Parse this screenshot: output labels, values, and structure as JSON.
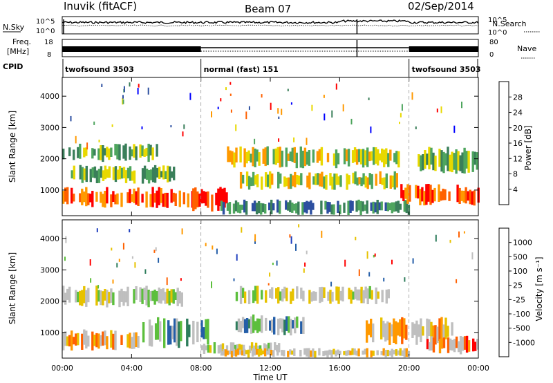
{
  "header": {
    "station": "Inuvik (fitACF)",
    "beam": "Beam 07",
    "date": "02/Sep/2014"
  },
  "aux_panels": {
    "nsky_label": "N.Sky",
    "nsearch_label": "N.Search",
    "freq_label_1": "Freq.",
    "freq_label_2": "[MHz]",
    "nave_label": "Nave",
    "cpid_label": "CPID",
    "noise_ticks": [
      "10^5",
      "10^0"
    ],
    "freq_ticks": [
      "18",
      "8"
    ],
    "nave_ticks": [
      "80",
      "0"
    ]
  },
  "cpid_segments": [
    {
      "label": "twofsound 3503",
      "start_h": 0,
      "end_h": 8
    },
    {
      "label": "normal (fast) 151",
      "start_h": 8,
      "end_h": 20
    },
    {
      "label": "twofsound 3503",
      "start_h": 20,
      "end_h": 24
    }
  ],
  "colors": {
    "power_scale": [
      "#0000ff",
      "#2c4fa0",
      "#3a7f5a",
      "#4ea55e",
      "#e8d800",
      "#ff9900",
      "#ff6000",
      "#ff0000"
    ],
    "velocity_scale": [
      "#1f3fbf",
      "#245ea8",
      "#2e7d5c",
      "#5cbf3c",
      "#bfbfbf",
      "#e7c200",
      "#ff9900",
      "#ff6000",
      "#ff0000"
    ],
    "gray": "#c8c8c2"
  },
  "chart_data": [
    {
      "type": "heatmap",
      "panel": "power",
      "xlabel": "Time UT",
      "ylabel": "Slant Range [km]",
      "xlim": [
        0,
        24
      ],
      "ylim": [
        180,
        4600
      ],
      "xticks": [
        "00:00",
        "04:00",
        "08:00",
        "12:00",
        "16:00",
        "20:00",
        "00:00"
      ],
      "yticks": [
        1000,
        2000,
        3000,
        4000
      ],
      "colorbar_label": "Power [dB]",
      "colorbar_ticks": [
        "28",
        "24",
        "20",
        "16",
        "12",
        "8",
        "4"
      ],
      "bands": [
        {
          "t0": 0.0,
          "t1": 5.5,
          "r0": 1900,
          "r1": 2500,
          "level": 3
        },
        {
          "t0": 0.5,
          "t1": 6.5,
          "r0": 1200,
          "r1": 1800,
          "level": 3
        },
        {
          "t0": 0.0,
          "t1": 7.5,
          "r0": 400,
          "r1": 1100,
          "level": 6
        },
        {
          "t0": 7.5,
          "t1": 9.5,
          "r0": 300,
          "r1": 1100,
          "level": 7
        },
        {
          "t0": 9.5,
          "t1": 19.5,
          "r0": 1700,
          "r1": 2400,
          "level": 4
        },
        {
          "t0": 10.0,
          "t1": 19.5,
          "r0": 1000,
          "r1": 1600,
          "level": 4
        },
        {
          "t0": 9.0,
          "t1": 20.0,
          "r0": 200,
          "r1": 700,
          "level": 2
        },
        {
          "t0": 19.5,
          "t1": 24.0,
          "r0": 500,
          "r1": 1200,
          "level": 6
        },
        {
          "t0": 20.5,
          "t1": 24.0,
          "r0": 1500,
          "r1": 2400,
          "level": 3
        }
      ]
    },
    {
      "type": "heatmap",
      "panel": "velocity",
      "xlabel": "Time UT",
      "ylabel": "Slant Range [km]",
      "xlim": [
        0,
        24
      ],
      "ylim": [
        180,
        4600
      ],
      "xticks": [
        "00:00",
        "04:00",
        "08:00",
        "12:00",
        "16:00",
        "20:00",
        "00:00"
      ],
      "yticks": [
        1000,
        2000,
        3000,
        4000
      ],
      "colorbar_label": "Velocity [m s⁻¹]",
      "colorbar_ticks": [
        "1000",
        "500",
        "100",
        "25",
        "-25",
        "-100",
        "-500",
        "-1000"
      ],
      "bands": [
        {
          "t0": 0.0,
          "t1": 7.0,
          "r0": 1800,
          "r1": 2500,
          "level": 4
        },
        {
          "t0": 0.0,
          "t1": 4.5,
          "r0": 400,
          "r1": 1100,
          "level": 6
        },
        {
          "t0": 4.5,
          "t1": 8.5,
          "r0": 500,
          "r1": 1500,
          "level": 2
        },
        {
          "t0": 8.0,
          "t1": 12.5,
          "r0": 300,
          "r1": 700,
          "level": 4
        },
        {
          "t0": 10.0,
          "t1": 19.0,
          "r0": 1900,
          "r1": 2500,
          "level": 4
        },
        {
          "t0": 10.0,
          "t1": 14.0,
          "r0": 900,
          "r1": 1600,
          "level": 2
        },
        {
          "t0": 9.0,
          "t1": 20.0,
          "r0": 200,
          "r1": 500,
          "level": 5
        },
        {
          "t0": 17.5,
          "t1": 22.5,
          "r0": 600,
          "r1": 1500,
          "level": 6
        },
        {
          "t0": 21.0,
          "t1": 24.0,
          "r0": 300,
          "r1": 900,
          "level": 7
        }
      ]
    }
  ]
}
